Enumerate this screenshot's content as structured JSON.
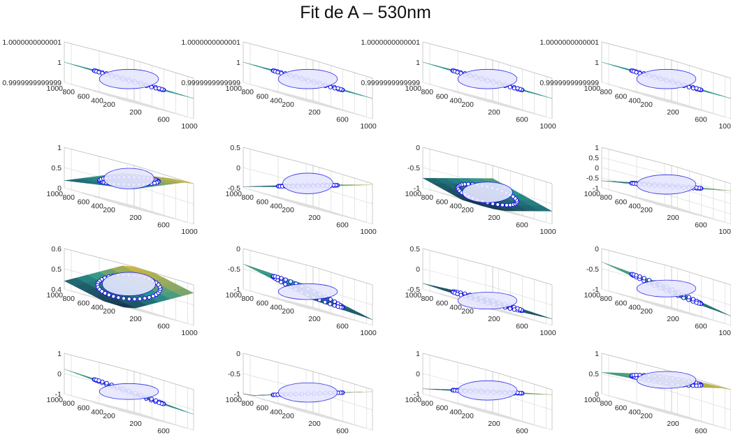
{
  "title": "Fit de A – 530nm",
  "colors": {
    "marker": "#1414e6",
    "marker_fill": "#ffffff",
    "axis": "#262626",
    "grid": "#dcdcdc",
    "surface_dark": "#0c2f4a",
    "surface_mid": "#1f8f8a",
    "surface_light": "#c9b33b"
  },
  "chart_data": [
    {
      "type": "surface3d",
      "row": 1,
      "col": 1,
      "xticks": [
        "200",
        "600",
        "1000"
      ],
      "yticks": [
        "1000",
        "800",
        "600",
        "400",
        "200"
      ],
      "zticks": [
        "0.9999999999999",
        "1",
        "1.0000000000001"
      ],
      "zlim": [
        0.9999999999999,
        1.0000000000001
      ],
      "plane": {
        "a": 1.0,
        "b": 0.0,
        "c": 0.0
      },
      "points_shape": "disc",
      "grid": true
    },
    {
      "type": "surface3d",
      "row": 1,
      "col": 2,
      "xticks": [
        "200",
        "600",
        "1000"
      ],
      "yticks": [
        "1000",
        "800",
        "600",
        "400",
        "200"
      ],
      "zticks": [
        "0.9999999999999",
        "1",
        "1.0000000000001"
      ],
      "zlim": [
        0.9999999999999,
        1.0000000000001
      ],
      "plane": {
        "a": 1.0,
        "b": 0.0,
        "c": 0.0
      },
      "points_shape": "disc",
      "grid": true
    },
    {
      "type": "surface3d",
      "row": 1,
      "col": 3,
      "xticks": [
        "200",
        "600",
        "1000"
      ],
      "yticks": [
        "1000",
        "800",
        "600",
        "400",
        "200"
      ],
      "zticks": [
        "0.9999999999999",
        "1",
        "1.0000000000001"
      ],
      "zlim": [
        0.9999999999999,
        1.0000000000001
      ],
      "plane": {
        "a": 1.0,
        "b": 0.0,
        "c": 0.0
      },
      "points_shape": "disc",
      "grid": true
    },
    {
      "type": "surface3d",
      "row": 1,
      "col": 4,
      "xticks": [
        "200",
        "600",
        "1000"
      ],
      "yticks": [
        "1000",
        "800",
        "600",
        "400",
        "200"
      ],
      "zticks": [
        "0.9999999999999",
        "1",
        "1.0000000000001"
      ],
      "zlim": [
        0.9999999999999,
        1.0000000000001
      ],
      "plane": {
        "a": 1.0,
        "b": 0.0,
        "c": 0.0
      },
      "points_shape": "disc",
      "grid": true
    },
    {
      "type": "surface3d",
      "row": 2,
      "col": 1,
      "xticks": [
        "200",
        "600",
        "1000"
      ],
      "yticks": [
        "1000",
        "800",
        "600",
        "400",
        "200"
      ],
      "zticks": [
        "0",
        "0.5",
        "1"
      ],
      "zlim": [
        0,
        1
      ],
      "plane": {
        "a": 0.62,
        "b": 0.12,
        "c": -0.32
      },
      "points_shape": "cap",
      "grid": true
    },
    {
      "type": "surface3d",
      "row": 2,
      "col": 2,
      "xticks": [
        "200",
        "600",
        "1000"
      ],
      "yticks": [
        "1000",
        "800",
        "600",
        "400",
        "200"
      ],
      "zticks": [
        "-0.5",
        "0",
        "0.5"
      ],
      "zlim": [
        -0.5,
        0.5
      ],
      "plane": {
        "a": 0.0,
        "b": 0.25,
        "c": -0.22
      },
      "points_shape": "cap",
      "grid": true
    },
    {
      "type": "surface3d",
      "row": 2,
      "col": 3,
      "xticks": [
        "200",
        "600",
        "1000"
      ],
      "yticks": [
        "1000",
        "800",
        "600",
        "400",
        "200"
      ],
      "zticks": [
        "-1",
        "-0.5",
        "0"
      ],
      "zlim": [
        -1,
        0
      ],
      "plane": {
        "a": -0.72,
        "b": 0.22,
        "c": 0.18
      },
      "points_shape": "cap",
      "grid": true
    },
    {
      "type": "surface3d",
      "row": 2,
      "col": 4,
      "xticks": [
        "200",
        "600",
        "1000"
      ],
      "yticks": [
        "1000",
        "800",
        "600",
        "400",
        "200"
      ],
      "zticks": [
        "-1",
        "-0.5",
        "0",
        "0.5",
        "1"
      ],
      "zlim": [
        -1,
        1
      ],
      "plane": {
        "a": 0.0,
        "b": 0.35,
        "c": -0.3
      },
      "points_shape": "disc",
      "grid": true
    },
    {
      "type": "surface3d",
      "row": 3,
      "col": 1,
      "xticks": [
        "200",
        "600",
        "1000"
      ],
      "yticks": [
        "1000",
        "800",
        "600",
        "400",
        "200"
      ],
      "zticks": [
        "0.4",
        "0.5",
        "0.6"
      ],
      "zlim": [
        0.4,
        0.6
      ],
      "plane": {
        "a": 0.5,
        "b": 0.09,
        "c": 0.03
      },
      "points_shape": "band",
      "grid": true
    },
    {
      "type": "surface3d",
      "row": 3,
      "col": 2,
      "xticks": [
        "200",
        "600",
        "1000"
      ],
      "yticks": [
        "1000",
        "800",
        "600",
        "400",
        "200"
      ],
      "zticks": [
        "-1",
        "-0.5",
        "0"
      ],
      "zlim": [
        -1,
        0
      ],
      "plane": {
        "a": -0.62,
        "b": -0.22,
        "c": 0.02
      },
      "points_shape": "line",
      "grid": true
    },
    {
      "type": "surface3d",
      "row": 3,
      "col": 3,
      "xticks": [
        "200",
        "600",
        "1000"
      ],
      "yticks": [
        "1000",
        "800",
        "600",
        "400",
        "200"
      ],
      "zticks": [
        "-0.5",
        "0",
        "0.5"
      ],
      "zlim": [
        -0.5,
        0.5
      ],
      "plane": {
        "a": -0.35,
        "b": 0.03,
        "c": 0.02
      },
      "points_shape": "thin",
      "grid": true
    },
    {
      "type": "surface3d",
      "row": 3,
      "col": 4,
      "xticks": [
        "200",
        "600",
        "1000"
      ],
      "yticks": [
        "1000",
        "800",
        "600",
        "400",
        "200"
      ],
      "zticks": [
        "-1",
        "-0.5",
        "0"
      ],
      "zlim": [
        -1,
        0
      ],
      "plane": {
        "a": -0.55,
        "b": -0.18,
        "c": 0.04
      },
      "points_shape": "thin",
      "grid": true
    },
    {
      "type": "surface3d",
      "row": 4,
      "col": 1,
      "xticks": [
        "200",
        "600",
        "1000"
      ],
      "yticks": [
        "1000",
        "800",
        "600",
        "400",
        "200"
      ],
      "zticks": [
        "-1",
        "0",
        "1"
      ],
      "zlim": [
        -1,
        1
      ],
      "plane": {
        "a": 0.0,
        "b": -0.2,
        "c": 0.02
      },
      "points_shape": "line",
      "grid": true
    },
    {
      "type": "surface3d",
      "row": 4,
      "col": 2,
      "xticks": [
        "200",
        "600",
        "1000"
      ],
      "yticks": [
        "1000",
        "800",
        "600",
        "400",
        "200"
      ],
      "zticks": [
        "-1",
        "-0.5",
        "0"
      ],
      "zlim": [
        -1,
        0
      ],
      "plane": {
        "a": -0.55,
        "b": 0.25,
        "c": -0.25
      },
      "points_shape": "disc",
      "grid": true
    },
    {
      "type": "surface3d",
      "row": 4,
      "col": 3,
      "xticks": [
        "200",
        "600",
        "1000"
      ],
      "yticks": [
        "1000",
        "800",
        "600",
        "400",
        "200"
      ],
      "zticks": [
        "-1",
        "0",
        "1"
      ],
      "zlim": [
        -1,
        1
      ],
      "plane": {
        "a": 0.0,
        "b": 0.4,
        "c": -0.35
      },
      "points_shape": "disc",
      "grid": true
    },
    {
      "type": "surface3d",
      "row": 4,
      "col": 4,
      "xticks": [
        "200",
        "600",
        "1000"
      ],
      "yticks": [
        "1000",
        "800",
        "600",
        "400",
        "200"
      ],
      "zticks": [
        "0",
        "0.5",
        "1"
      ],
      "zlim": [
        0,
        1
      ],
      "plane": {
        "a": 0.78,
        "b": 0.05,
        "c": -0.2
      },
      "points_shape": "thin",
      "grid": true
    }
  ]
}
